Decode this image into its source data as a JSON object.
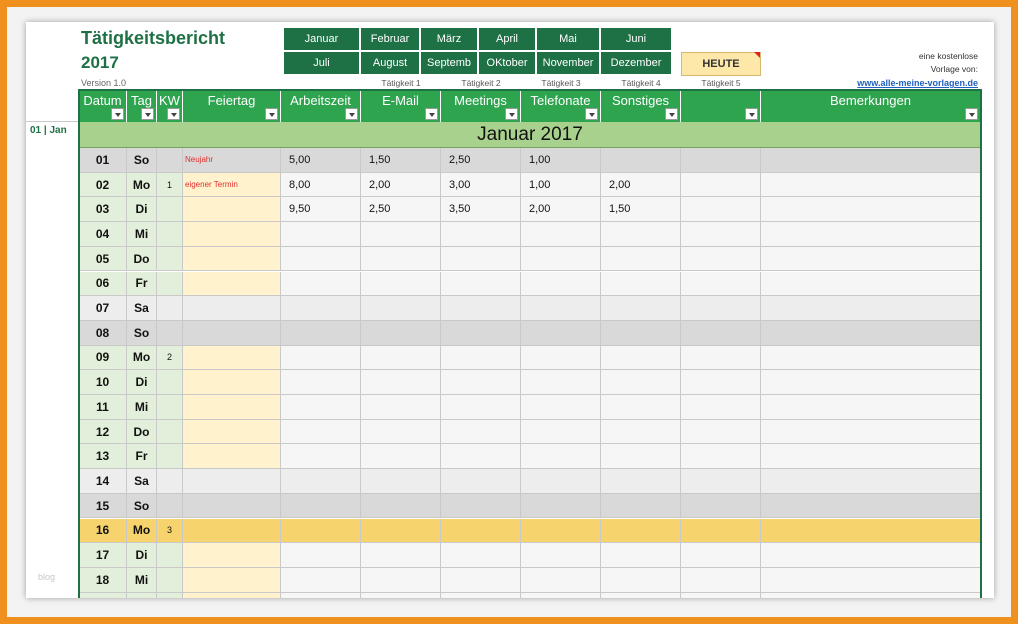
{
  "header": {
    "title": "Tätigkeitsbericht",
    "year": "2017",
    "version": "Version 1.0"
  },
  "months": {
    "row1": [
      "Januar",
      "Februar",
      "März",
      "April",
      "Mai",
      "Juni"
    ],
    "row2": [
      "Juli",
      "August",
      "Septemb",
      "OKtober",
      "November",
      "Dezember"
    ]
  },
  "today_button": "HEUTE",
  "activities": [
    "Tätigkeit 1",
    "Tätigkeit 2",
    "Tätigkeit 3",
    "Tätigkeit 4",
    "Tätigkeit 5"
  ],
  "promo": {
    "line1": "eine kostenlose",
    "line2": "Vorlage von:",
    "link": "www.alle-meine-vorlagen.de"
  },
  "table": {
    "side_label": "01 | Jan",
    "columns": [
      "Datum",
      "Tag",
      "KW",
      "Feiertag",
      "Arbeitszeit",
      "E-Mail",
      "Meetings",
      "Telefonate",
      "Sonstiges",
      "Bemerkungen"
    ],
    "banner": "Januar 2017",
    "rows": [
      {
        "day": "01",
        "weekday": "So",
        "holiday": "Neujahr",
        "cells": [
          "5,00",
          "1,50",
          "2,50",
          "1,00"
        ],
        "fill": "#d9d9d9"
      },
      {
        "day": "02",
        "weekday": "Mo",
        "kw": "1",
        "holiday": "eigener Termin",
        "cells": [
          "8,00",
          "2,00",
          "3,00",
          "1,00",
          "2,00"
        ]
      },
      {
        "day": "03",
        "weekday": "Di",
        "cells": [
          "9,50",
          "2,50",
          "3,50",
          "2,00",
          "1,50"
        ]
      },
      {
        "day": "04",
        "weekday": "Mi"
      },
      {
        "day": "05",
        "weekday": "Do"
      },
      {
        "day": "06",
        "weekday": "Fr"
      },
      {
        "day": "07",
        "weekday": "Sa",
        "fill": "#ededed"
      },
      {
        "day": "08",
        "weekday": "So",
        "fill": "#d9d9d9"
      },
      {
        "day": "09",
        "weekday": "Mo",
        "kw": "2"
      },
      {
        "day": "10",
        "weekday": "Di"
      },
      {
        "day": "11",
        "weekday": "Mi"
      },
      {
        "day": "12",
        "weekday": "Do"
      },
      {
        "day": "13",
        "weekday": "Fr"
      },
      {
        "day": "14",
        "weekday": "Sa",
        "fill": "#ededed"
      },
      {
        "day": "15",
        "weekday": "So",
        "fill": "#d9d9d9"
      },
      {
        "day": "16",
        "weekday": "Mo",
        "kw": "3",
        "fill": "#f6d36c"
      },
      {
        "day": "17",
        "weekday": "Di"
      },
      {
        "day": "18",
        "weekday": "Mi"
      }
    ]
  },
  "watermark": "blog"
}
